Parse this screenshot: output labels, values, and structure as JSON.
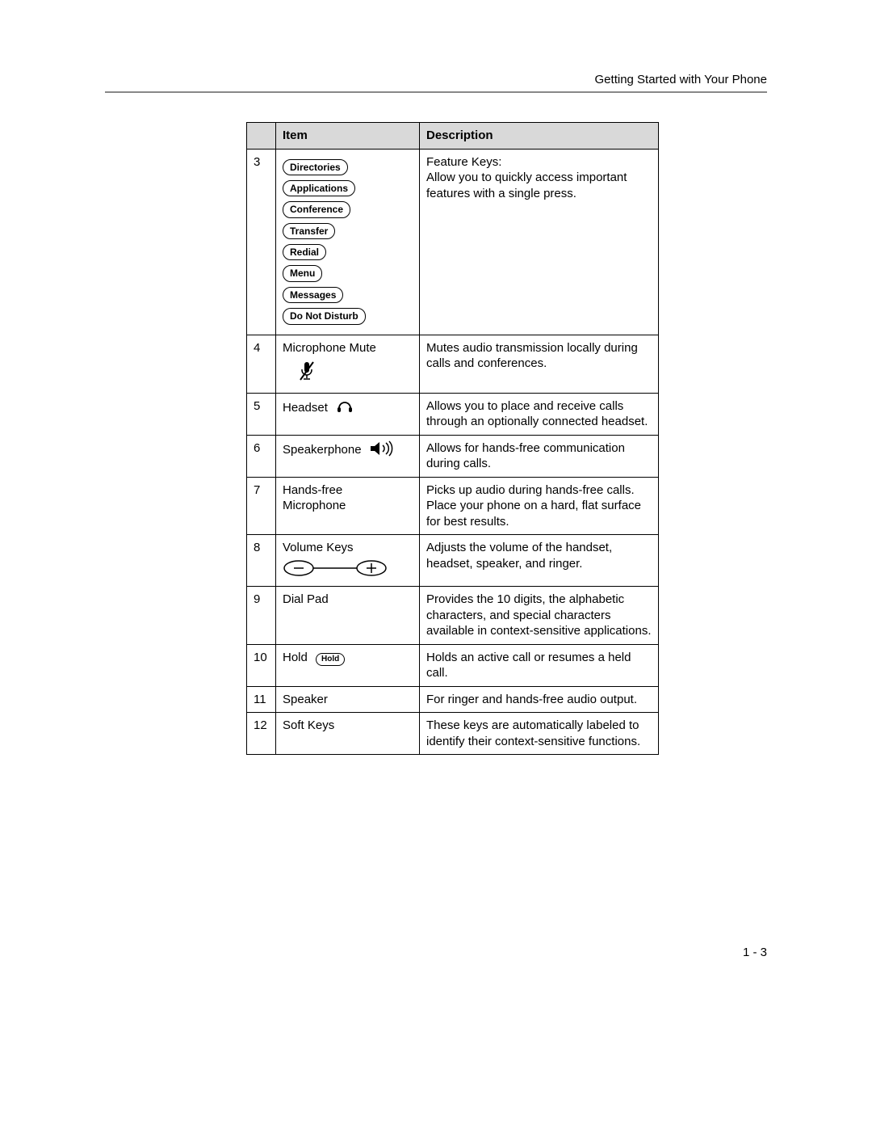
{
  "header": {
    "title": "Getting Started with Your Phone"
  },
  "table": {
    "columns": [
      "",
      "Item",
      "Description"
    ],
    "header_bg": "#d9d9d9",
    "border_color": "#000000",
    "rows": [
      {
        "num": "3",
        "item_type": "feature_keys",
        "feature_key_labels": [
          "Directories",
          "Applications",
          "Conference",
          "Transfer",
          "Redial",
          "Menu",
          "Messages",
          "Do Not Disturb"
        ],
        "description": "Feature Keys:\nAllow you to quickly access important features with a single press."
      },
      {
        "num": "4",
        "item_type": "label_icon",
        "item_label": "Microphone Mute",
        "icon": "mic-mute",
        "description": "Mutes audio transmission locally during calls and conferences."
      },
      {
        "num": "5",
        "item_type": "label_icon_inline",
        "item_label": "Headset",
        "icon": "headset",
        "description": "Allows you to place and receive calls through an optionally connected headset."
      },
      {
        "num": "6",
        "item_type": "label_icon_inline",
        "item_label": "Speakerphone",
        "icon": "speakerphone",
        "description": "Allows for hands-free communication during calls."
      },
      {
        "num": "7",
        "item_type": "label",
        "item_label": "Hands-free Microphone",
        "description": "Picks up audio during hands-free calls. Place your phone on a hard, flat surface for best results."
      },
      {
        "num": "8",
        "item_type": "label_icon",
        "item_label": "Volume Keys",
        "icon": "volume-keys",
        "description": "Adjusts the volume of the handset, headset, speaker, and ringer."
      },
      {
        "num": "9",
        "item_type": "label",
        "item_label": "Dial Pad",
        "description": "Provides the 10 digits, the alphabetic characters, and special characters available in context-sensitive applications."
      },
      {
        "num": "10",
        "item_type": "label_button_inline",
        "item_label": "Hold",
        "button_label": "Hold",
        "description": "Holds an active call or resumes a held call."
      },
      {
        "num": "11",
        "item_type": "label",
        "item_label": "Speaker",
        "description": "For ringer and hands-free audio output."
      },
      {
        "num": "12",
        "item_type": "label",
        "item_label": "Soft Keys",
        "description": "These keys are automatically labeled to identify their context-sensitive functions."
      }
    ]
  },
  "page_number": "1 - 3"
}
